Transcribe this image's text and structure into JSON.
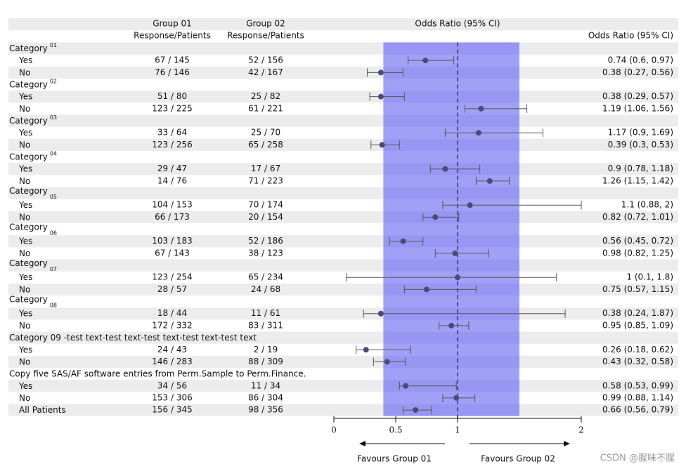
{
  "chart_data": {
    "type": "forest",
    "header": {
      "group1": "Group 01",
      "group2": "Group 02",
      "subheader": "Response/Patients",
      "plot": "Odds Ratio (95% CI)",
      "ratio": "Odds Ratio (95% CI)"
    },
    "rows": [
      {
        "label": "Category",
        "sup": "01"
      },
      {
        "label": "Yes",
        "group1": "67 / 145",
        "group2": "52 / 156",
        "or": 0.74,
        "lower": 0.6,
        "upper": 0.97,
        "value_label": "0.74 (0.6, 0.97)"
      },
      {
        "label": "No",
        "group1": "76 / 146",
        "group2": "42 / 167",
        "or": 0.38,
        "lower": 0.27,
        "upper": 0.56,
        "value_label": "0.38 (0.27, 0.56)"
      },
      {
        "label": "Category",
        "sup": "02"
      },
      {
        "label": "Yes",
        "group1": "51 / 80",
        "group2": "25 / 82",
        "or": 0.38,
        "lower": 0.29,
        "upper": 0.57,
        "value_label": "0.38 (0.29, 0.57)"
      },
      {
        "label": "No",
        "group1": "123 / 225",
        "group2": "61 / 221",
        "or": 1.19,
        "lower": 1.06,
        "upper": 1.56,
        "value_label": "1.19 (1.06, 1.56)"
      },
      {
        "label": "Category",
        "sup": "03"
      },
      {
        "label": "Yes",
        "group1": "33 / 64",
        "group2": "25 / 70",
        "or": 1.17,
        "lower": 0.9,
        "upper": 1.69,
        "value_label": "1.17 (0.9, 1.69)"
      },
      {
        "label": "No",
        "group1": "123 / 256",
        "group2": "65 / 258",
        "or": 0.39,
        "lower": 0.3,
        "upper": 0.53,
        "value_label": "0.39 (0.3, 0.53)"
      },
      {
        "label": "Category",
        "sup": "04"
      },
      {
        "label": "Yes",
        "group1": "29 / 47",
        "group2": "17 / 67",
        "or": 0.9,
        "lower": 0.78,
        "upper": 1.18,
        "value_label": "0.9 (0.78, 1.18)"
      },
      {
        "label": "No",
        "group1": "14 / 76",
        "group2": "71 / 223",
        "or": 1.26,
        "lower": 1.15,
        "upper": 1.42,
        "value_label": "1.26 (1.15, 1.42)"
      },
      {
        "label": "Category",
        "sub": "05"
      },
      {
        "label": "Yes",
        "group1": "104 / 153",
        "group2": "70 / 174",
        "or": 1.1,
        "lower": 0.88,
        "upper": 2,
        "value_label": "1.1 (0.88, 2)"
      },
      {
        "label": "No",
        "group1": "66 / 173",
        "group2": "20 / 154",
        "or": 0.82,
        "lower": 0.72,
        "upper": 1.01,
        "value_label": "0.82 (0.72, 1.01)"
      },
      {
        "label": "Category",
        "sub": "06"
      },
      {
        "label": "Yes",
        "group1": "103 / 183",
        "group2": "52 / 186",
        "or": 0.56,
        "lower": 0.45,
        "upper": 0.72,
        "value_label": "0.56 (0.45, 0.72)"
      },
      {
        "label": "No",
        "group1": "67 / 143",
        "group2": "38 / 123",
        "or": 0.98,
        "lower": 0.82,
        "upper": 1.25,
        "value_label": "0.98 (0.82, 1.25)"
      },
      {
        "label": "Category",
        "sub": "07"
      },
      {
        "label": "Yes",
        "group1": "123 / 254",
        "group2": "65 / 234",
        "or": 1,
        "lower": 0.1,
        "upper": 1.8,
        "value_label": "1 (0.1, 1.8)"
      },
      {
        "label": "No",
        "group1": "28 / 57",
        "group2": "24 / 68",
        "or": 0.75,
        "lower": 0.57,
        "upper": 1.15,
        "value_label": "0.75 (0.57, 1.15)"
      },
      {
        "label": "Category",
        "sub": "08"
      },
      {
        "label": "Yes",
        "group1": "18 / 44",
        "group2": "11 / 61",
        "or": 0.38,
        "lower": 0.24,
        "upper": 1.87,
        "value_label": "0.38 (0.24, 1.87)"
      },
      {
        "label": "No",
        "group1": "172 / 332",
        "group2": "83 / 311",
        "or": 0.95,
        "lower": 0.85,
        "upper": 1.09,
        "value_label": "0.95 (0.85, 1.09)"
      },
      {
        "label": "Category 09 -test text-test text-test text-test text-test text"
      },
      {
        "label": "Yes",
        "group1": "24 / 43",
        "group2": "2 / 19",
        "or": 0.26,
        "lower": 0.18,
        "upper": 0.62,
        "value_label": "0.26 (0.18, 0.62)"
      },
      {
        "label": "No",
        "group1": "146 / 283",
        "group2": "88 / 309",
        "or": 0.43,
        "lower": 0.32,
        "upper": 0.58,
        "value_label": "0.43 (0.32, 0.58)"
      },
      {
        "label": "Copy five SAS/AF software entries from Perm.Sample to Perm.Finance."
      },
      {
        "label": "Yes",
        "group1": "34 / 56",
        "group2": "11 / 34",
        "or": 0.58,
        "lower": 0.53,
        "upper": 0.99,
        "value_label": "0.58 (0.53, 0.99)"
      },
      {
        "label": "No",
        "group1": "153 / 306",
        "group2": "86 / 304",
        "or": 0.99,
        "lower": 0.88,
        "upper": 1.14,
        "value_label": "0.99 (0.88, 1.14)"
      },
      {
        "label": "All Patients",
        "group1": "156 / 345",
        "group2": "98 / 356",
        "or": 0.66,
        "lower": 0.56,
        "upper": 0.79,
        "value_label": "0.66 (0.56, 0.79)"
      }
    ],
    "xlim": [
      0,
      2
    ],
    "xticks": [
      0,
      0.5,
      1,
      2
    ],
    "reference": 1,
    "band": [
      0.4,
      1.5
    ],
    "band_color": "#a0a0f6",
    "point_color": "#4a4a78",
    "favours_left": "Favours Group 01",
    "favours_right": "Favours Group 02",
    "watermark": "CSDN @腥味不腥"
  }
}
